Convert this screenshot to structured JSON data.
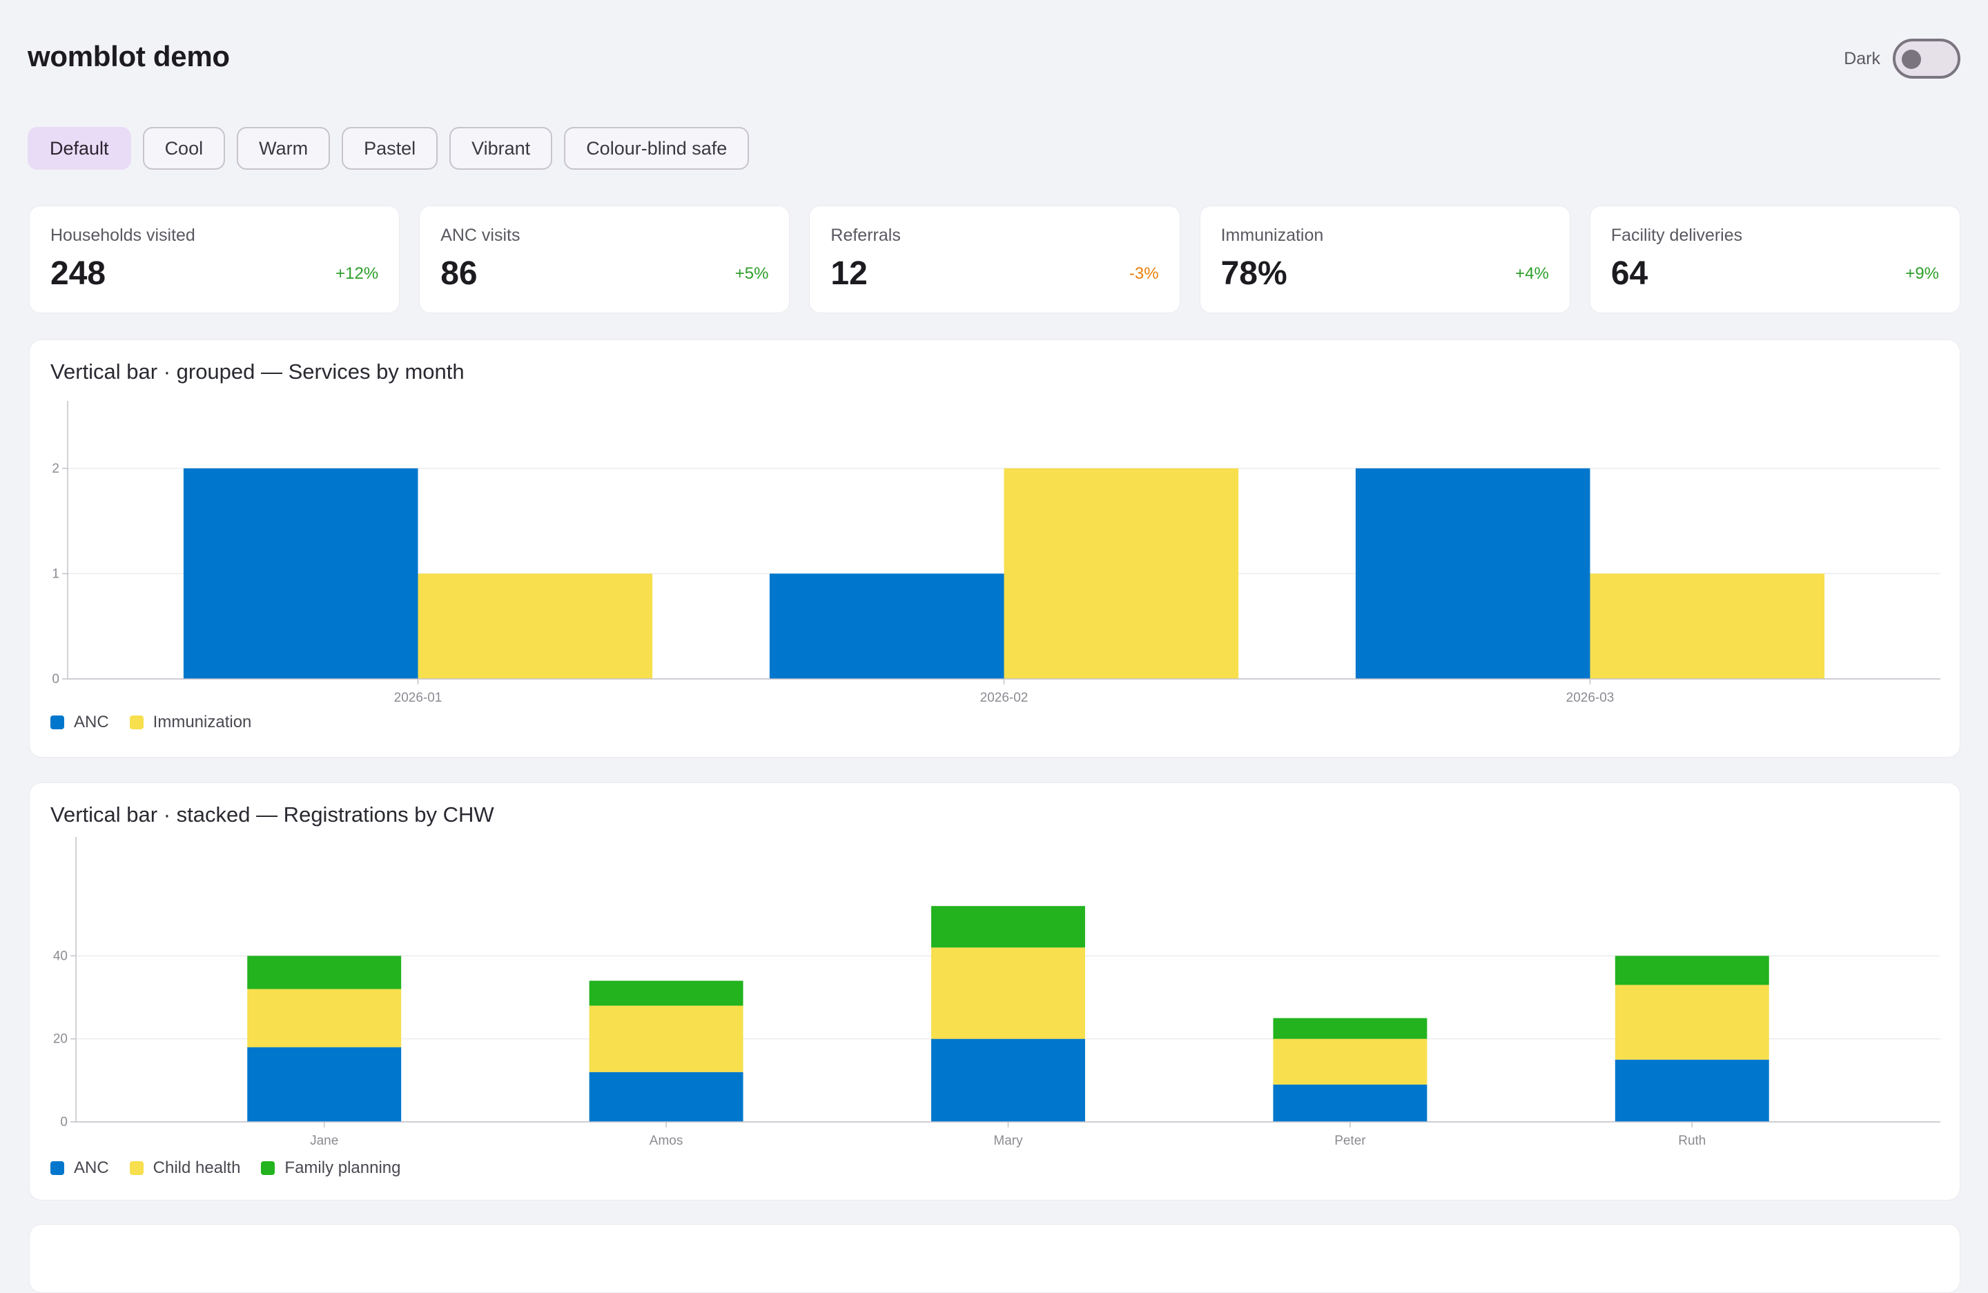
{
  "app": {
    "title": "womblot demo",
    "dark_label": "Dark"
  },
  "themes": [
    "Default",
    "Cool",
    "Warm",
    "Pastel",
    "Vibrant",
    "Colour-blind safe"
  ],
  "active_theme": "Default",
  "kpis": [
    {
      "label": "Households visited",
      "value": "248",
      "delta": "+12%",
      "trend": "up"
    },
    {
      "label": "ANC visits",
      "value": "86",
      "delta": "+5%",
      "trend": "up"
    },
    {
      "label": "Referrals",
      "value": "12",
      "delta": "-3%",
      "trend": "down"
    },
    {
      "label": "Immunization",
      "value": "78%",
      "delta": "+4%",
      "trend": "up"
    },
    {
      "label": "Facility deliveries",
      "value": "64",
      "delta": "+9%",
      "trend": "up"
    }
  ],
  "colors": {
    "blue": "#0077cc",
    "yellow": "#f7df4d",
    "green": "#22b31f",
    "delta_up": "#2e9e2a",
    "delta_down": "#e8800a"
  },
  "chart_data": [
    {
      "type": "bar",
      "mode": "grouped",
      "title": "Vertical bar · grouped — Services by month",
      "categories": [
        "2026-01",
        "2026-02",
        "2026-03"
      ],
      "series": [
        {
          "name": "ANC",
          "values": [
            2,
            1,
            2
          ],
          "color": "#0077cc"
        },
        {
          "name": "Immunization",
          "values": [
            1,
            2,
            1
          ],
          "color": "#f7df4d"
        }
      ],
      "yticks": [
        0,
        1,
        2
      ],
      "ylim": [
        0,
        2.3
      ],
      "grid": true,
      "legend": "bottom-left"
    },
    {
      "type": "bar",
      "mode": "stacked",
      "title": "Vertical bar · stacked — Registrations by CHW",
      "categories": [
        "Jane",
        "Amos",
        "Mary",
        "Peter",
        "Ruth"
      ],
      "series": [
        {
          "name": "ANC",
          "values": [
            18,
            12,
            20,
            9,
            15
          ],
          "color": "#0077cc"
        },
        {
          "name": "Child health",
          "values": [
            14,
            16,
            22,
            11,
            18
          ],
          "color": "#f7df4d"
        },
        {
          "name": "Family planning",
          "values": [
            8,
            6,
            10,
            5,
            7
          ],
          "color": "#22b31f"
        }
      ],
      "yticks": [
        0,
        20,
        40
      ],
      "ylim": [
        0,
        60
      ],
      "grid": true,
      "legend": "bottom-left"
    }
  ]
}
